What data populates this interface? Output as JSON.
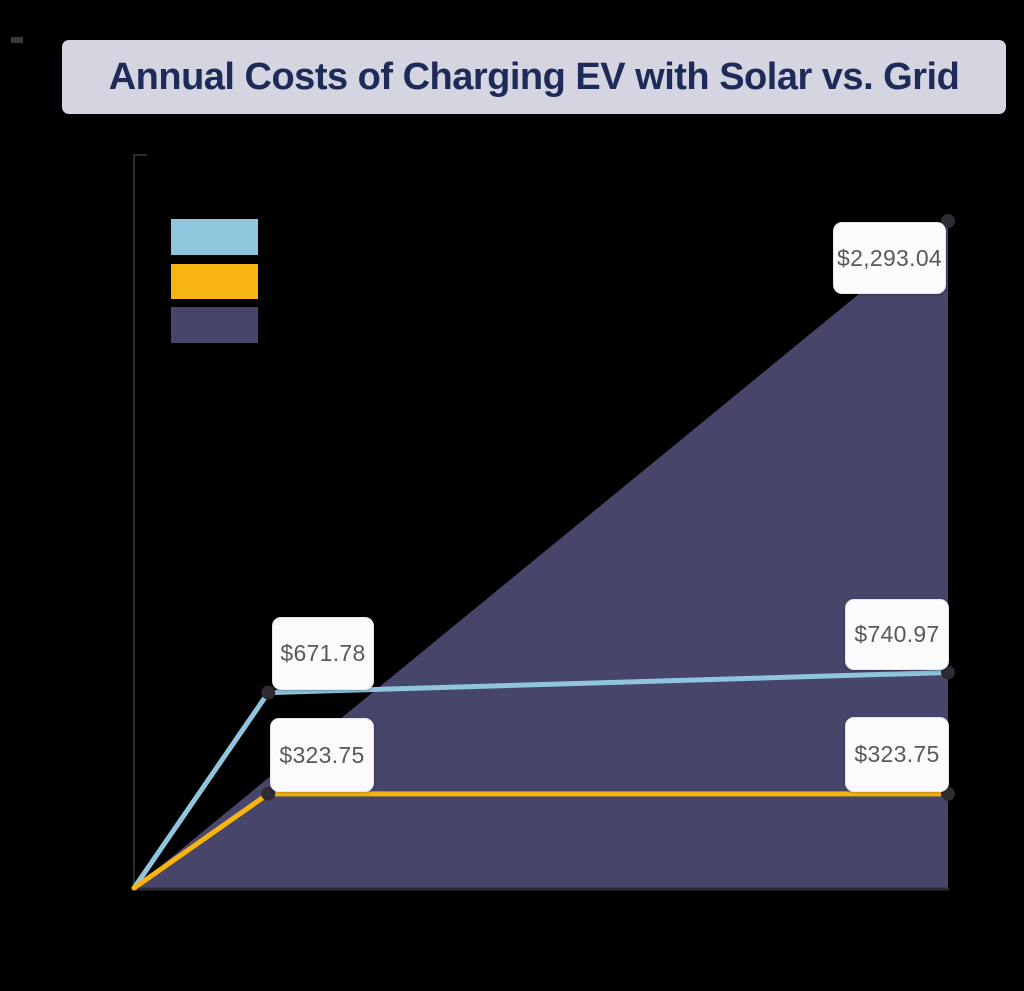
{
  "page": {
    "background": "#000000"
  },
  "decor": {
    "corner_dash_color": "#3a3a3a"
  },
  "title": {
    "text": "Annual Costs of Charging EV with Solar vs. Grid",
    "bg": "#d4d5e1",
    "color": "#1e2b58"
  },
  "legend": {
    "position": "top-left",
    "items": [
      {
        "id": "blue",
        "color": "#8fc6de",
        "label": ""
      },
      {
        "id": "yellow",
        "color": "#f8b512",
        "label": ""
      },
      {
        "id": "purple",
        "color": "#474569",
        "label": ""
      }
    ]
  },
  "colors": {
    "axis": "#2d2d2d",
    "marker": "#2e2b33",
    "label_box_bg": "#fbfbfd",
    "label_box_text": "#58585e",
    "label_box_border": "#e6e6ee"
  },
  "chart_data": {
    "type": "line",
    "title": "Annual Costs of Charging EV with Solar vs. Grid",
    "x_axis": {
      "tick_labels_visible": false
    },
    "y_axis": {
      "tick_labels_visible": false,
      "min": 0,
      "max_rendered": 2293.04
    },
    "grid": false,
    "series": [
      {
        "name": "series-blue",
        "type": "line",
        "color": "#8fc6de",
        "points": [
          {
            "x": 0,
            "value": 0
          },
          {
            "x": 0.165,
            "value": 671.78,
            "marker": true,
            "label": "$671.78"
          },
          {
            "x": 1,
            "value": 740.97,
            "marker": true,
            "label": "$740.97"
          }
        ]
      },
      {
        "name": "series-yellow",
        "type": "line",
        "color": "#f8b512",
        "points": [
          {
            "x": 0,
            "value": 0
          },
          {
            "x": 0.165,
            "value": 323.75,
            "marker": true,
            "label": "$323.75"
          },
          {
            "x": 1,
            "value": 323.75,
            "marker": true,
            "label": "$323.75"
          }
        ]
      },
      {
        "name": "series-purple-area",
        "type": "area",
        "color": "#474569",
        "points": [
          {
            "x": 0,
            "value": 0
          },
          {
            "x": 1,
            "value": 2293.04,
            "marker": true,
            "label": "$2,293.04"
          }
        ]
      }
    ],
    "value_labels": {
      "grid_end": "$2,293.04",
      "blue_mid": "$671.78",
      "blue_end": "$740.97",
      "yellow_mid": "$323.75",
      "yellow_end": "$323.75"
    }
  }
}
